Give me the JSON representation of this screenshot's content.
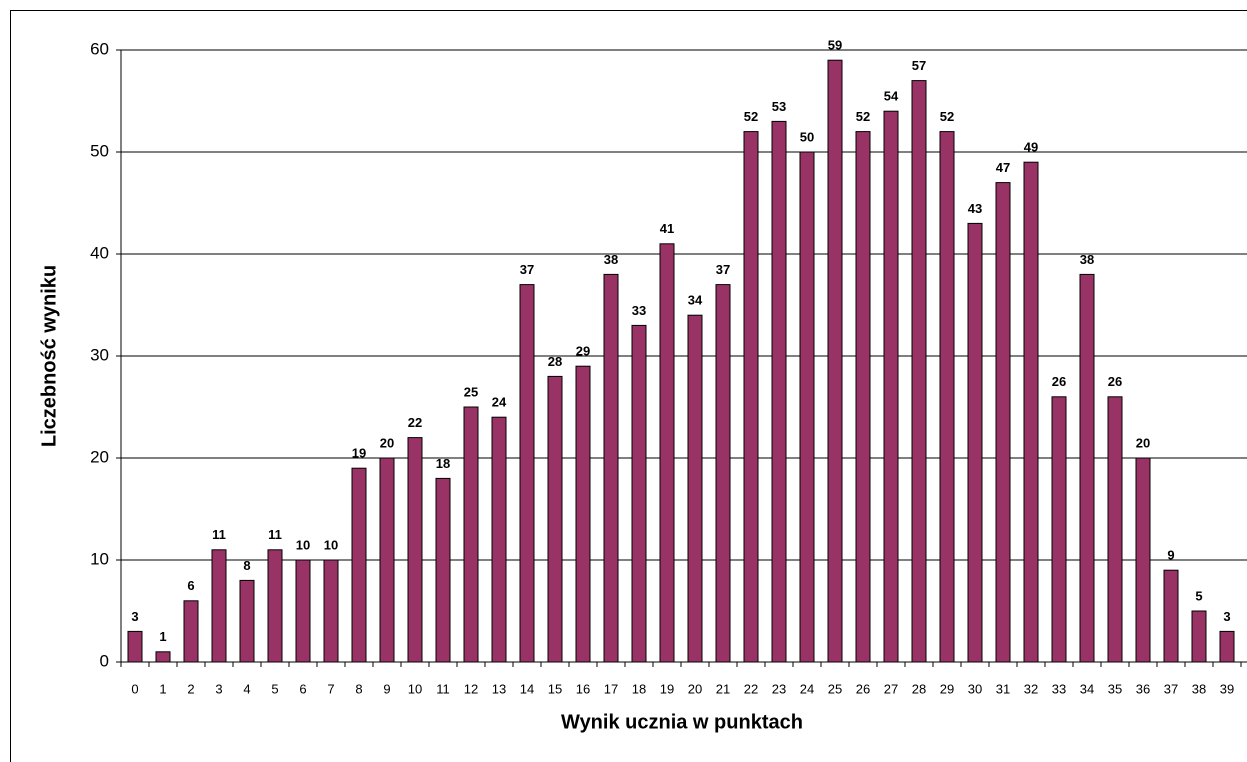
{
  "chart_data": {
    "type": "bar",
    "xlabel": "Wynik ucznia w punktach",
    "ylabel": "Liczebność wyniku",
    "categories": [
      "0",
      "1",
      "2",
      "3",
      "4",
      "5",
      "6",
      "7",
      "8",
      "9",
      "10",
      "11",
      "12",
      "13",
      "14",
      "15",
      "16",
      "17",
      "18",
      "19",
      "20",
      "21",
      "22",
      "23",
      "24",
      "25",
      "26",
      "27",
      "28",
      "29",
      "30",
      "31",
      "32",
      "33",
      "34",
      "35",
      "36",
      "37",
      "38",
      "39"
    ],
    "values": [
      3,
      1,
      6,
      11,
      8,
      11,
      10,
      10,
      19,
      20,
      22,
      18,
      25,
      24,
      37,
      28,
      29,
      38,
      33,
      41,
      34,
      37,
      52,
      53,
      50,
      59,
      52,
      54,
      57,
      52,
      43,
      47,
      49,
      26,
      38,
      26,
      20,
      9,
      5,
      3
    ],
    "color": "#993366",
    "ylim": [
      0,
      60
    ],
    "yticks": [
      0,
      10,
      20,
      30,
      40,
      50,
      60
    ],
    "grid": true
  }
}
